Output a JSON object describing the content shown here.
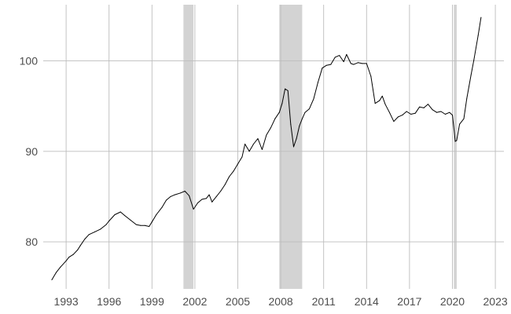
{
  "chart_data": {
    "type": "line",
    "title": "",
    "xlabel": "",
    "ylabel": "",
    "xlim": [
      1991.4,
      2023.6
    ],
    "ylim": [
      74.8,
      106.2
    ],
    "x_ticks": [
      1993,
      1996,
      1999,
      2002,
      2005,
      2008,
      2011,
      2014,
      2017,
      2020,
      2023
    ],
    "x_tick_labels": [
      "1993",
      "1996",
      "1999",
      "2002",
      "2005",
      "2008",
      "2011",
      "2014",
      "2017",
      "2020",
      "2023"
    ],
    "y_ticks": [
      80,
      90,
      100
    ],
    "y_tick_labels": [
      "80",
      "90",
      "100"
    ],
    "grid": true,
    "legend": "none",
    "line_color": "#000000",
    "shade_color": "#d3d3d3",
    "recessions": [
      [
        2001.2,
        2001.9
      ],
      [
        2007.9,
        2009.5
      ],
      [
        2020.1,
        2020.3
      ]
    ],
    "series": [
      {
        "x": [
          1992.0,
          1992.3,
          1992.6,
          1993.0,
          1993.2,
          1993.5,
          1993.8,
          1994.0,
          1994.3,
          1994.6,
          1995.0,
          1995.4,
          1995.8,
          1996.0,
          1996.4,
          1996.8,
          1997.1,
          1997.5,
          1997.9,
          1998.2,
          1998.5,
          1998.8,
          1999.0,
          1999.3,
          1999.7,
          2000.0,
          2000.3,
          2000.6,
          2001.0,
          2001.3,
          2001.6,
          2001.9,
          2002.2,
          2002.5,
          2002.8,
          2003.0,
          2003.2,
          2003.5,
          2003.8,
          2004.1,
          2004.4,
          2004.7,
          2005.0,
          2005.3,
          2005.5,
          2005.8,
          2006.1,
          2006.4,
          2006.7,
          2007.0,
          2007.3,
          2007.6,
          2007.9,
          2008.1,
          2008.3,
          2008.5,
          2008.7,
          2008.9,
          2009.1,
          2009.3,
          2009.5,
          2009.7,
          2010.0,
          2010.3,
          2010.6,
          2010.9,
          2011.2,
          2011.5,
          2011.8,
          2012.1,
          2012.4,
          2012.6,
          2012.9,
          2013.1,
          2013.4,
          2013.7,
          2014.0,
          2014.3,
          2014.6,
          2014.9,
          2015.1,
          2015.3,
          2015.6,
          2015.9,
          2016.2,
          2016.5,
          2016.8,
          2017.1,
          2017.4,
          2017.7,
          2018.0,
          2018.3,
          2018.6,
          2018.9,
          2019.2,
          2019.5,
          2019.8,
          2020.0,
          2020.2,
          2020.3,
          2020.5,
          2020.8,
          2021.0,
          2021.3,
          2021.5,
          2021.8,
          2022.0
        ],
        "values": [
          75.8,
          76.6,
          77.2,
          77.9,
          78.3,
          78.6,
          79.1,
          79.6,
          80.3,
          80.8,
          81.1,
          81.4,
          81.9,
          82.3,
          83.0,
          83.3,
          82.9,
          82.4,
          81.9,
          81.8,
          81.8,
          81.7,
          82.2,
          83.0,
          83.8,
          84.6,
          85.0,
          85.2,
          85.4,
          85.6,
          85.1,
          83.6,
          84.3,
          84.7,
          84.8,
          85.2,
          84.4,
          85.0,
          85.6,
          86.3,
          87.2,
          87.8,
          88.6,
          89.4,
          90.8,
          90.0,
          90.8,
          91.4,
          90.2,
          91.8,
          92.6,
          93.6,
          94.3,
          95.3,
          96.9,
          96.7,
          93.0,
          90.5,
          91.4,
          92.8,
          93.6,
          94.3,
          94.7,
          95.8,
          97.6,
          99.2,
          99.5,
          99.6,
          100.4,
          100.6,
          99.9,
          100.7,
          99.7,
          99.6,
          99.8,
          99.7,
          99.7,
          98.3,
          95.3,
          95.6,
          96.1,
          95.2,
          94.3,
          93.3,
          93.8,
          94.0,
          94.4,
          94.1,
          94.2,
          94.9,
          94.8,
          95.2,
          94.6,
          94.3,
          94.4,
          94.1,
          94.3,
          94.0,
          91.1,
          91.2,
          93.0,
          93.6,
          95.8,
          98.4,
          100.1,
          102.8,
          104.8
        ]
      }
    ]
  }
}
